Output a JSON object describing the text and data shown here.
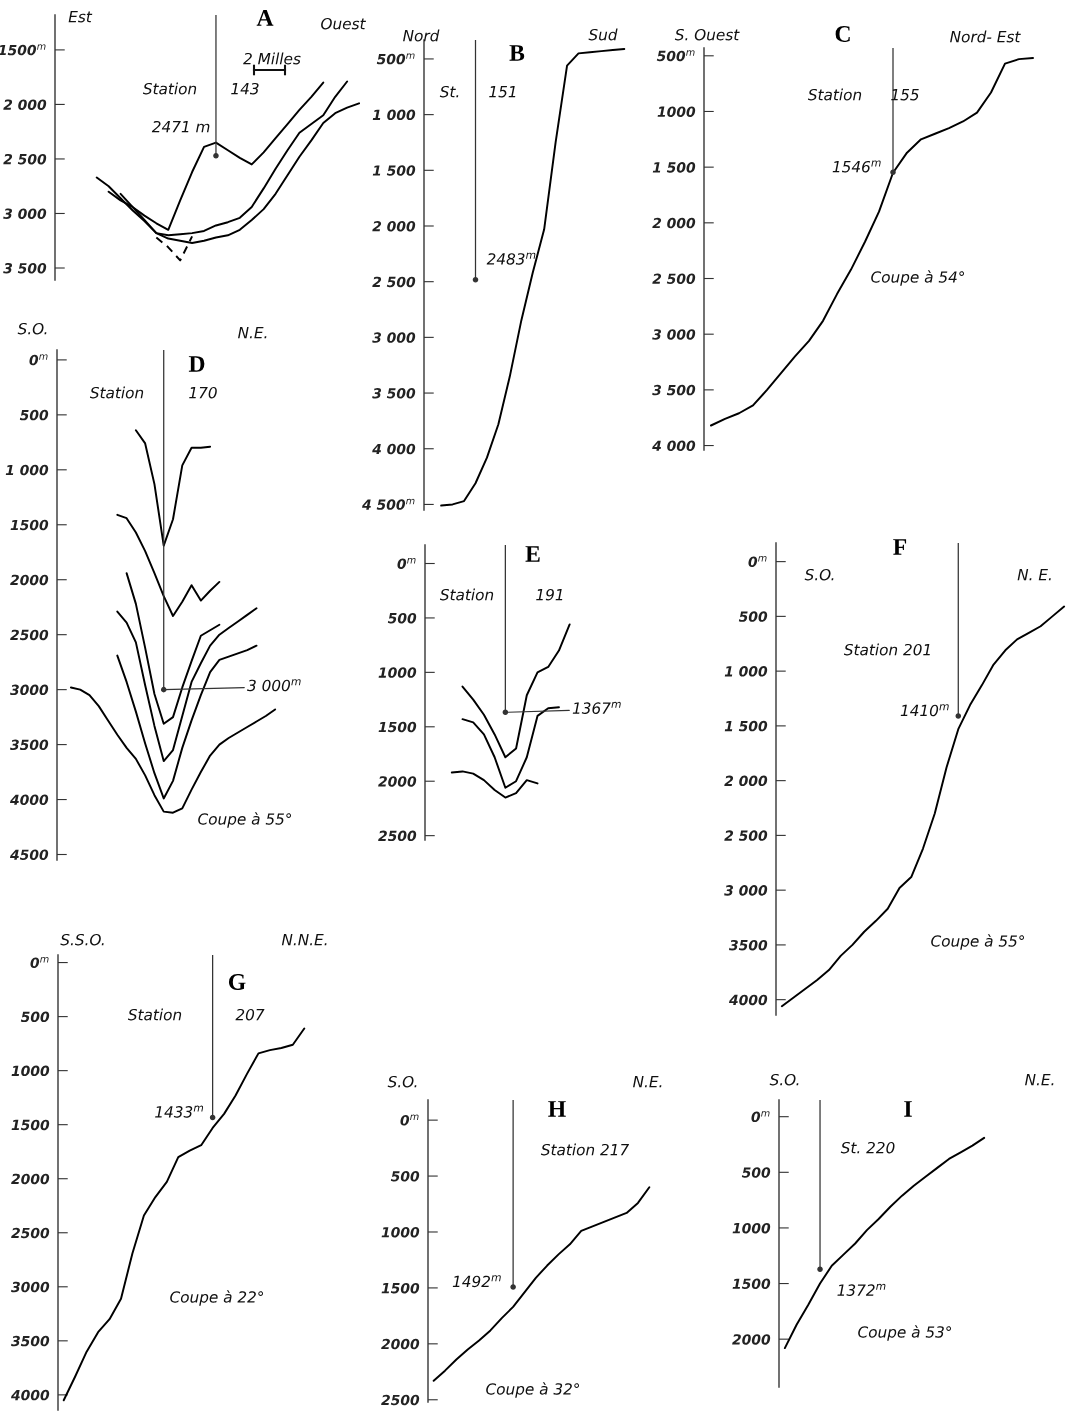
{
  "chart_data": [
    {
      "type": "line",
      "title": "A",
      "annotations": [
        "Est",
        "Ouest",
        "Station",
        "143",
        "2 Milles"
      ],
      "tick_labels": "y",
      "categories": [
        null,
        null,
        null,
        null,
        null,
        null,
        null,
        null,
        null,
        null,
        null,
        null,
        null,
        null,
        null,
        null,
        null,
        null,
        null,
        null,
        null,
        null,
        null,
        null,
        null,
        null
      ],
      "ylim": [
        3610,
        1180
      ],
      "yticks": [
        {
          "value": 1500,
          "label": "1500$^{m}$"
        },
        {
          "value": 2000,
          "label": "2 000"
        },
        {
          "value": 2500,
          "label": "2 500"
        },
        {
          "value": 3000,
          "label": "3 000"
        },
        {
          "value": 3500,
          "label": "3 500"
        }
      ],
      "series": [
        {
          "color": "#000000",
          "values": [
            null,
            null,
            null,
            null,
            2800,
            2880,
            2940,
            3020,
            3090,
            3150,
            2880,
            2620,
            2390,
            2350,
            2420,
            2490,
            2550,
            2440,
            2310,
            2180,
            2050,
            1930,
            1800,
            null,
            null,
            null
          ]
        },
        {
          "color": "#000000",
          "values": [
            null,
            null,
            null,
            2670,
            2750,
            2860,
            2970,
            3070,
            3180,
            3200,
            3190,
            3180,
            3160,
            3110,
            3080,
            3040,
            2940,
            2770,
            2590,
            2420,
            2260,
            2180,
            2100,
            1930,
            1790,
            null
          ]
        },
        {
          "color": "#000000",
          "values": [
            null,
            null,
            null,
            null,
            null,
            2820,
            2940,
            3060,
            3180,
            3230,
            3250,
            3270,
            3250,
            3220,
            3200,
            3150,
            3060,
            2960,
            2820,
            2650,
            2480,
            2330,
            2170,
            2080,
            2030,
            1990
          ]
        },
        {
          "color": "#000000",
          "line_style": "dashed",
          "values": [
            null,
            null,
            null,
            null,
            null,
            null,
            null,
            null,
            3220,
            3310,
            3430,
            3210,
            null,
            null,
            null,
            null,
            null,
            null,
            null,
            null,
            null,
            null,
            null,
            null,
            null,
            null
          ]
        },
        {
          "type": "lollipop",
          "color": "#333333",
          "values": [
            null,
            null,
            null,
            null,
            null,
            null,
            null,
            null,
            null,
            null,
            null,
            null,
            null,
            2471,
            null,
            null,
            null,
            null,
            null,
            null,
            null,
            null,
            null,
            null,
            null,
            null
          ],
          "value_labels": [
            null,
            null,
            null,
            null,
            null,
            null,
            null,
            null,
            null,
            null,
            null,
            null,
            null,
            "2471 m",
            null,
            null,
            null,
            null,
            null,
            null,
            null,
            null,
            null,
            null,
            null,
            null
          ]
        }
      ]
    },
    {
      "type": "line",
      "title": "B",
      "annotations": [
        "Nord",
        "Sud",
        "St.",
        "151"
      ],
      "tick_labels": "y",
      "categories": [
        null,
        null,
        null,
        null,
        null,
        null,
        null,
        null,
        null,
        null,
        null,
        null,
        null,
        null,
        null,
        null,
        null,
        null
      ],
      "ylim": [
        4550,
        330
      ],
      "yticks": [
        {
          "value": 500,
          "label": "500$^{m}$"
        },
        {
          "value": 1000,
          "label": "1 000"
        },
        {
          "value": 1500,
          "label": "1 500"
        },
        {
          "value": 2000,
          "label": "2 000"
        },
        {
          "value": 2500,
          "label": "2 500"
        },
        {
          "value": 3000,
          "label": "3 000"
        },
        {
          "value": 3500,
          "label": "3 500"
        },
        {
          "value": 4000,
          "label": "4 000"
        },
        {
          "value": 4500,
          "label": "4 500$^{m}$"
        }
      ],
      "series": [
        {
          "color": "#000000",
          "values": [
            null,
            4510,
            4500,
            4470,
            4310,
            4080,
            3780,
            3350,
            2850,
            2420,
            2030,
            1250,
            560,
            450,
            440,
            430,
            420,
            410
          ]
        },
        {
          "type": "lollipop",
          "color": "#333333",
          "values": [
            null,
            null,
            null,
            null,
            2483,
            null,
            null,
            null,
            null,
            null,
            null,
            null,
            null,
            null,
            null,
            null,
            null,
            null
          ],
          "value_labels": [
            null,
            null,
            null,
            null,
            "2483$^{m}$",
            null,
            null,
            null,
            null,
            null,
            null,
            null,
            null,
            null,
            null,
            null,
            null,
            null
          ]
        }
      ]
    },
    {
      "type": "line",
      "title": "C",
      "annotations": [
        "S. Ouest",
        "Nord- Est",
        "Station",
        "155",
        "Coupe à 54°"
      ],
      "tick_labels": "y",
      "categories": [
        null,
        null,
        null,
        null,
        null,
        null,
        null,
        null,
        null,
        null,
        null,
        null,
        null,
        null,
        null,
        null,
        null,
        null,
        null,
        null,
        null,
        null,
        null,
        null
      ],
      "ylim": [
        4040,
        430
      ],
      "yticks": [
        {
          "value": 500,
          "label": "500$^{m}$"
        },
        {
          "value": 1000,
          "label": "1000"
        },
        {
          "value": 1500,
          "label": "1 500"
        },
        {
          "value": 2000,
          "label": "2 000"
        },
        {
          "value": 2500,
          "label": "2 500"
        },
        {
          "value": 3000,
          "label": "3 000"
        },
        {
          "value": 3500,
          "label": "3 500"
        },
        {
          "value": 4000,
          "label": "4 000"
        }
      ],
      "series": [
        {
          "color": "#000000",
          "values": [
            3820,
            3760,
            3710,
            3640,
            3500,
            3350,
            3200,
            3060,
            2880,
            2640,
            2420,
            2170,
            1900,
            1550,
            1370,
            1250,
            1200,
            1150,
            1090,
            1010,
            830,
            570,
            530,
            520
          ]
        },
        {
          "type": "lollipop",
          "color": "#333333",
          "values": [
            null,
            null,
            null,
            null,
            null,
            null,
            null,
            null,
            null,
            null,
            null,
            null,
            null,
            1546,
            null,
            null,
            null,
            null,
            null,
            null,
            null,
            null,
            null,
            null
          ],
          "value_labels": [
            null,
            null,
            null,
            null,
            null,
            null,
            null,
            null,
            null,
            null,
            null,
            null,
            null,
            "1546$^{m}$",
            null,
            null,
            null,
            null,
            null,
            null,
            null,
            null,
            null,
            null
          ]
        }
      ]
    },
    {
      "type": "line",
      "title": "D",
      "annotations": [
        "S.O.",
        "N.E.",
        "Station",
        "170",
        "Coupe à 55°"
      ],
      "tick_labels": "y",
      "categories": [
        null,
        null,
        null,
        null,
        null,
        null,
        null,
        null,
        null,
        null,
        null,
        null,
        null,
        null,
        null,
        null,
        null,
        null,
        null,
        null,
        null,
        null,
        null,
        null,
        null
      ],
      "ylim": [
        4550,
        -90
      ],
      "yticks": [
        {
          "value": 0,
          "label": "0$^{m}$"
        },
        500,
        {
          "value": 1000,
          "label": "1 000"
        },
        1500,
        2000,
        2500,
        3000,
        3500,
        4000,
        4500
      ],
      "series": [
        {
          "color": "#000000",
          "values": [
            null,
            null,
            null,
            null,
            null,
            null,
            null,
            null,
            640,
            760,
            1130,
            1690,
            1450,
            960,
            800,
            800,
            790,
            null,
            null,
            null,
            null,
            null,
            null,
            null,
            null
          ]
        },
        {
          "color": "#000000",
          "values": [
            null,
            null,
            null,
            null,
            null,
            null,
            1410,
            1440,
            1570,
            1740,
            1940,
            2150,
            2330,
            2200,
            2050,
            2190,
            2100,
            2020,
            null,
            null,
            null,
            null,
            null,
            null,
            null
          ]
        },
        {
          "color": "#000000",
          "values": [
            null,
            null,
            null,
            null,
            null,
            null,
            null,
            1940,
            2220,
            2620,
            3040,
            3310,
            3250,
            2980,
            2740,
            2510,
            2460,
            2410,
            null,
            null,
            null,
            null,
            null,
            null,
            null
          ]
        },
        {
          "color": "#000000",
          "values": [
            null,
            null,
            null,
            null,
            null,
            null,
            2290,
            2390,
            2570,
            2960,
            3330,
            3650,
            3550,
            3240,
            2930,
            2760,
            2600,
            2500,
            2440,
            2380,
            2320,
            2260,
            null,
            null,
            null
          ]
        },
        {
          "color": "#000000",
          "values": [
            null,
            null,
            null,
            null,
            null,
            null,
            2690,
            2930,
            3200,
            3490,
            3760,
            3990,
            3830,
            3530,
            3280,
            3050,
            2840,
            2730,
            2700,
            2670,
            2640,
            2600,
            null,
            null,
            null
          ]
        },
        {
          "color": "#000000",
          "values": [
            null,
            2980,
            3000,
            3050,
            3150,
            3280,
            3410,
            3530,
            3630,
            3780,
            3960,
            4110,
            4120,
            4080,
            3910,
            3750,
            3600,
            3500,
            3440,
            3390,
            3340,
            3290,
            3240,
            3180,
            null
          ]
        },
        {
          "type": "lollipop",
          "color": "#333333",
          "values": [
            null,
            null,
            null,
            null,
            null,
            null,
            null,
            null,
            null,
            null,
            null,
            3000,
            null,
            null,
            null,
            null,
            null,
            null,
            null,
            null,
            null,
            null,
            null,
            null,
            null
          ],
          "value_labels": [
            null,
            null,
            null,
            null,
            null,
            null,
            null,
            null,
            null,
            null,
            null,
            "3 000$^{m}$",
            null,
            null,
            null,
            null,
            null,
            null,
            null,
            null,
            null,
            null,
            null,
            null,
            null
          ]
        }
      ]
    },
    {
      "type": "line",
      "title": "E",
      "annotations": [
        "Station",
        "191"
      ],
      "tick_labels": "y",
      "categories": [
        null,
        null,
        null,
        null,
        null,
        null,
        null,
        null,
        null,
        null,
        null,
        null,
        null,
        null
      ],
      "ylim": [
        2540,
        -170
      ],
      "yticks": [
        {
          "value": 0,
          "label": "0$^{m}$"
        },
        500,
        1000,
        1500,
        2000,
        2500
      ],
      "series": [
        {
          "color": "#000000",
          "values": [
            null,
            null,
            null,
            1130,
            1250,
            1390,
            1570,
            1780,
            1700,
            1210,
            1000,
            950,
            800,
            560
          ]
        },
        {
          "color": "#000000",
          "values": [
            null,
            null,
            null,
            1430,
            1460,
            1570,
            1780,
            2060,
            2000,
            1780,
            1400,
            1330,
            1320,
            null
          ]
        },
        {
          "color": "#000000",
          "values": [
            null,
            null,
            1920,
            1910,
            1930,
            1990,
            2080,
            2150,
            2110,
            1990,
            2020,
            null,
            null,
            null
          ]
        },
        {
          "type": "lollipop",
          "color": "#333333",
          "values": [
            null,
            null,
            null,
            null,
            null,
            null,
            null,
            1367,
            null,
            null,
            null,
            null,
            null,
            null
          ],
          "value_labels": [
            null,
            null,
            null,
            null,
            null,
            null,
            null,
            "1367$^{m}$",
            null,
            null,
            null,
            null,
            null,
            null
          ]
        }
      ]
    },
    {
      "type": "line",
      "title": "F",
      "annotations": [
        "S.O.",
        "N. E.",
        "Station 201",
        "Coupe à 55°"
      ],
      "tick_labels": "y",
      "categories": [
        null,
        null,
        null,
        null,
        null,
        null,
        null,
        null,
        null,
        null,
        null,
        null,
        null,
        null,
        null,
        null,
        null,
        null,
        null,
        null,
        null,
        null,
        null,
        null,
        null
      ],
      "ylim": [
        4140,
        -170
      ],
      "yticks": [
        {
          "value": 0,
          "label": "0$^{m}$"
        },
        500,
        {
          "value": 1000,
          "label": "1 000"
        },
        {
          "value": 1500,
          "label": "1 500"
        },
        {
          "value": 2000,
          "label": "2 000"
        },
        {
          "value": 2500,
          "label": "2 500"
        },
        {
          "value": 3000,
          "label": "3 000"
        },
        3500,
        4000
      ],
      "series": [
        {
          "color": "#000000",
          "values": [
            4060,
            3980,
            3900,
            3820,
            3730,
            3600,
            3500,
            3380,
            3280,
            3170,
            2980,
            2880,
            2620,
            2300,
            1880,
            1530,
            1310,
            1130,
            940,
            810,
            710,
            650,
            590,
            500,
            410
          ]
        },
        {
          "type": "lollipop",
          "color": "#333333",
          "values": [
            null,
            null,
            null,
            null,
            null,
            null,
            null,
            null,
            null,
            null,
            null,
            null,
            null,
            null,
            null,
            1410,
            null,
            null,
            null,
            null,
            null,
            null,
            null,
            null,
            null
          ],
          "value_labels": [
            null,
            null,
            null,
            null,
            null,
            null,
            null,
            null,
            null,
            null,
            null,
            null,
            null,
            null,
            null,
            "1410$^{m}$",
            null,
            null,
            null,
            null,
            null,
            null,
            null,
            null,
            null
          ]
        }
      ]
    },
    {
      "type": "line",
      "title": "G",
      "annotations": [
        "S.S.O.",
        "N.N.E.",
        "Station",
        "207",
        "Coupe à 22°"
      ],
      "tick_labels": "y",
      "categories": [
        null,
        null,
        null,
        null,
        null,
        null,
        null,
        null,
        null,
        null,
        null,
        null,
        null,
        null,
        null,
        null,
        null,
        null,
        null,
        null,
        null,
        null
      ],
      "ylim": [
        4140,
        -70
      ],
      "yticks": [
        {
          "value": 0,
          "label": "0$^{m}$"
        },
        500,
        1000,
        1500,
        2000,
        2500,
        3000,
        3500,
        4000
      ],
      "series": [
        {
          "color": "#000000",
          "values": [
            4050,
            3830,
            3600,
            3420,
            3300,
            3110,
            2690,
            2340,
            2170,
            2030,
            1800,
            1740,
            1690,
            1530,
            1400,
            1230,
            1030,
            840,
            810,
            790,
            760,
            610
          ]
        },
        {
          "type": "lollipop",
          "color": "#333333",
          "values": [
            null,
            null,
            null,
            null,
            null,
            null,
            null,
            null,
            null,
            null,
            null,
            null,
            null,
            1433,
            null,
            null,
            null,
            null,
            null,
            null,
            null,
            null
          ],
          "value_labels": [
            null,
            null,
            null,
            null,
            null,
            null,
            null,
            null,
            null,
            null,
            null,
            null,
            null,
            "1433$^{m}$",
            null,
            null,
            null,
            null,
            null,
            null,
            null,
            null
          ]
        }
      ]
    },
    {
      "type": "line",
      "title": "H",
      "annotations": [
        "S.O.",
        "N.E.",
        "Station 217",
        "Coupe à 32°"
      ],
      "tick_labels": "y",
      "categories": [
        null,
        null,
        null,
        null,
        null,
        null,
        null,
        null,
        null,
        null,
        null,
        null,
        null,
        null,
        null,
        null,
        null,
        null,
        null,
        null
      ],
      "ylim": [
        2520,
        -180
      ],
      "yticks": [
        {
          "value": 0,
          "label": "0$^{m}$"
        },
        500,
        1000,
        1500,
        2000,
        2500
      ],
      "series": [
        {
          "color": "#000000",
          "values": [
            2330,
            2240,
            2140,
            2050,
            1970,
            1880,
            1770,
            1670,
            1540,
            1410,
            1300,
            1200,
            1110,
            990,
            950,
            910,
            870,
            830,
            740,
            600
          ]
        },
        {
          "type": "lollipop",
          "color": "#333333",
          "values": [
            null,
            null,
            null,
            null,
            null,
            null,
            null,
            1492,
            null,
            null,
            null,
            null,
            null,
            null,
            null,
            null,
            null,
            null,
            null,
            null
          ],
          "value_labels": [
            null,
            null,
            null,
            null,
            null,
            null,
            null,
            "1492$^{m}$",
            null,
            null,
            null,
            null,
            null,
            null,
            null,
            null,
            null,
            null,
            null,
            null
          ]
        }
      ]
    },
    {
      "type": "line",
      "title": "I",
      "annotations": [
        "S.O.",
        "N.E.",
        "St. 220",
        "Coupe à 53°"
      ],
      "tick_labels": "y",
      "categories": [
        null,
        null,
        null,
        null,
        null,
        null,
        null,
        null,
        null,
        null,
        null,
        null,
        null,
        null,
        null,
        null,
        null,
        null
      ],
      "ylim": [
        2430,
        -150
      ],
      "yticks": [
        {
          "value": 0,
          "label": "0$^{m}$"
        },
        500,
        1000,
        1500,
        2000
      ],
      "series": [
        {
          "color": "#000000",
          "values": [
            2080,
            1870,
            1690,
            1500,
            1340,
            1240,
            1140,
            1020,
            920,
            810,
            710,
            620,
            540,
            460,
            380,
            320,
            260,
            190
          ]
        },
        {
          "type": "lollipop",
          "color": "#333333",
          "values": [
            null,
            null,
            null,
            1372,
            null,
            null,
            null,
            null,
            null,
            null,
            null,
            null,
            null,
            null,
            null,
            null,
            null,
            null
          ],
          "value_labels": [
            null,
            null,
            null,
            "1372$^{m}$",
            null,
            null,
            null,
            null,
            null,
            null,
            null,
            null,
            null,
            null,
            null,
            null,
            null,
            null
          ]
        }
      ]
    }
  ]
}
